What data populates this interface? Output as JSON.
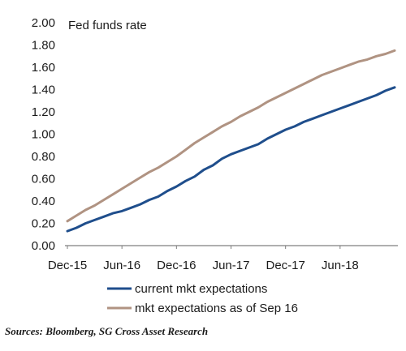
{
  "chart_data": {
    "type": "line",
    "annotation": "Fed funds rate",
    "x_ticks": [
      "Dec-15",
      "Jun-16",
      "Dec-16",
      "Jun-17",
      "Dec-17",
      "Jun-18"
    ],
    "ylim": [
      0,
      2.0
    ],
    "y_ticks": [
      "0.00",
      "0.20",
      "0.40",
      "0.60",
      "0.80",
      "1.00",
      "1.20",
      "1.40",
      "1.60",
      "1.80",
      "2.00"
    ],
    "legend_position": "bottom",
    "grid": false,
    "series": [
      {
        "name": "current mkt expectations",
        "color": "#1f4e8c",
        "x": [
          "2015-12",
          "2016-01",
          "2016-02",
          "2016-03",
          "2016-04",
          "2016-05",
          "2016-06",
          "2016-07",
          "2016-08",
          "2016-09",
          "2016-10",
          "2016-11",
          "2016-12",
          "2017-01",
          "2017-02",
          "2017-03",
          "2017-04",
          "2017-05",
          "2017-06",
          "2017-07",
          "2017-08",
          "2017-09",
          "2017-10",
          "2017-11",
          "2017-12",
          "2018-01",
          "2018-02",
          "2018-03",
          "2018-04",
          "2018-05",
          "2018-06",
          "2018-07",
          "2018-08",
          "2018-09",
          "2018-10",
          "2018-11",
          "2018-12"
        ],
        "values": [
          0.13,
          0.16,
          0.2,
          0.23,
          0.26,
          0.29,
          0.31,
          0.34,
          0.37,
          0.41,
          0.44,
          0.49,
          0.53,
          0.58,
          0.62,
          0.68,
          0.72,
          0.78,
          0.82,
          0.85,
          0.88,
          0.91,
          0.96,
          1.0,
          1.04,
          1.07,
          1.11,
          1.14,
          1.17,
          1.2,
          1.23,
          1.26,
          1.29,
          1.32,
          1.35,
          1.39,
          1.42
        ]
      },
      {
        "name": "mkt expectations as of Sep 16",
        "color": "#b09382",
        "x": [
          "2015-12",
          "2016-01",
          "2016-02",
          "2016-03",
          "2016-04",
          "2016-05",
          "2016-06",
          "2016-07",
          "2016-08",
          "2016-09",
          "2016-10",
          "2016-11",
          "2016-12",
          "2017-01",
          "2017-02",
          "2017-03",
          "2017-04",
          "2017-05",
          "2017-06",
          "2017-07",
          "2017-08",
          "2017-09",
          "2017-10",
          "2017-11",
          "2017-12",
          "2018-01",
          "2018-02",
          "2018-03",
          "2018-04",
          "2018-05",
          "2018-06",
          "2018-07",
          "2018-08",
          "2018-09",
          "2018-10",
          "2018-11",
          "2018-12"
        ],
        "values": [
          0.22,
          0.27,
          0.32,
          0.36,
          0.41,
          0.46,
          0.51,
          0.56,
          0.61,
          0.66,
          0.7,
          0.75,
          0.8,
          0.86,
          0.92,
          0.97,
          1.02,
          1.07,
          1.11,
          1.16,
          1.2,
          1.24,
          1.29,
          1.33,
          1.37,
          1.41,
          1.45,
          1.49,
          1.53,
          1.56,
          1.59,
          1.62,
          1.65,
          1.67,
          1.7,
          1.72,
          1.75
        ]
      }
    ]
  },
  "source": "Sources: Bloomberg, SG Cross Asset Research"
}
